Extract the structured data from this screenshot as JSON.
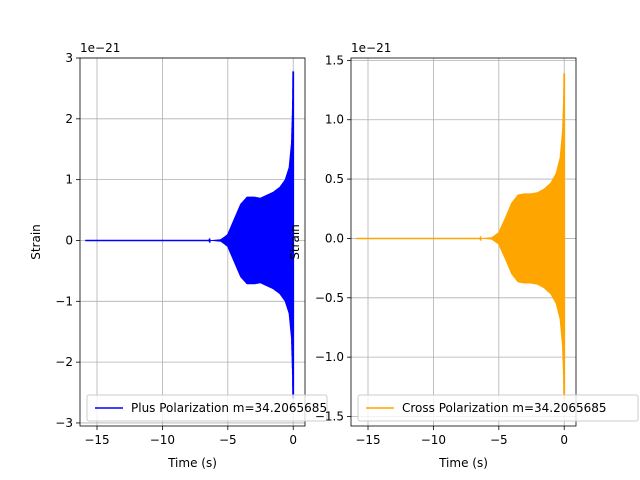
{
  "chart_data": [
    {
      "type": "line",
      "xlabel": "Time (s)",
      "ylabel": "Strain",
      "offset_text": "1e−21",
      "xlim": [
        -16.3,
        0.9
      ],
      "ylim": [
        -3.05,
        3.0
      ],
      "xticks": [
        -15,
        -10,
        -5,
        0
      ],
      "xtick_labels": [
        "−15",
        "−10",
        "−5",
        "0"
      ],
      "yticks": [
        -3,
        -2,
        -1,
        0,
        1,
        2,
        3
      ],
      "ytick_labels": [
        "−3",
        "−2",
        "−1",
        "0",
        "1",
        "2",
        "3"
      ],
      "grid": true,
      "legend_position": "lower-right",
      "series": [
        {
          "name": "Plus Polarization m=34.2065685",
          "color": "#0000ff",
          "x_range": [
            -15.9,
            0.0
          ],
          "envelope": {
            "t": [
              -15.9,
              -8.0,
              -6.5,
              -5.5,
              -5.0,
              -4.5,
              -4.0,
              -3.5,
              -3.0,
              -2.5,
              -2.0,
              -1.5,
              -1.0,
              -0.6,
              -0.3,
              -0.12,
              -0.04,
              0.0
            ],
            "amp": [
              0.0,
              0.0,
              0.0,
              0.02,
              0.1,
              0.35,
              0.6,
              0.72,
              0.72,
              0.7,
              0.75,
              0.8,
              0.88,
              1.0,
              1.2,
              1.6,
              2.2,
              2.78
            ]
          },
          "min_at_merger": -2.6
        }
      ]
    },
    {
      "type": "line",
      "xlabel": "Time (s)",
      "ylabel": "Strain",
      "offset_text": "1e−21",
      "xlim": [
        -16.3,
        0.9
      ],
      "ylim": [
        -1.58,
        1.52
      ],
      "xticks": [
        -15,
        -10,
        -5,
        0
      ],
      "xtick_labels": [
        "−15",
        "−10",
        "−5",
        "0"
      ],
      "yticks": [
        -1.5,
        -1.0,
        -0.5,
        0.0,
        0.5,
        1.0,
        1.5
      ],
      "ytick_labels": [
        "−1.5",
        "−1.0",
        "−0.5",
        "0.0",
        "0.5",
        "1.0",
        "1.5"
      ],
      "grid": true,
      "legend_position": "lower-right",
      "series": [
        {
          "name": "Cross Polarization m=34.2065685",
          "color": "#ffa500",
          "x_range": [
            -15.9,
            0.0
          ],
          "envelope": {
            "t": [
              -15.9,
              -8.0,
              -6.5,
              -5.5,
              -5.0,
              -4.5,
              -4.0,
              -3.5,
              -3.0,
              -2.5,
              -2.0,
              -1.5,
              -1.0,
              -0.6,
              -0.3,
              -0.12,
              -0.04,
              0.0
            ],
            "amp": [
              0.0,
              0.0,
              0.0,
              0.01,
              0.05,
              0.17,
              0.3,
              0.37,
              0.38,
              0.38,
              0.39,
              0.42,
              0.47,
              0.55,
              0.68,
              0.9,
              1.15,
              1.39
            ]
          },
          "min_at_merger": -1.35
        }
      ]
    }
  ]
}
